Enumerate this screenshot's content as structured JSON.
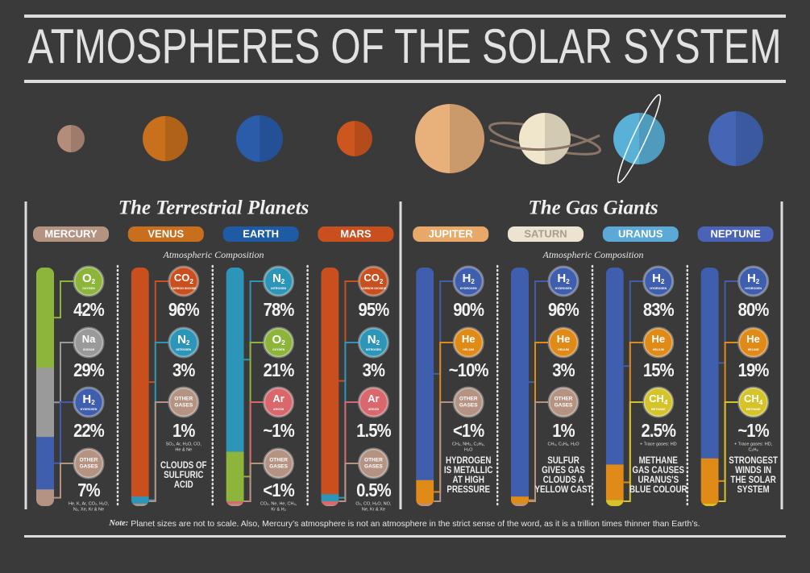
{
  "title": "ATMOSPHERES OF THE SOLAR SYSTEM",
  "groups": [
    {
      "title": "The Terrestrial Planets",
      "subtitle": "Atmospheric Composition",
      "planets": [
        {
          "name": "MERCURY",
          "color": "#b59383",
          "disc_color": "#b58c7a",
          "gases": [
            {
              "symbol": "O",
              "sub": "2",
              "name": "OXYGEN",
              "color": "#8db53c",
              "value": 42,
              "label": "42%"
            },
            {
              "symbol": "Na",
              "name": "SODIUM",
              "color": "#9a9a9a",
              "value": 29,
              "label": "29%"
            },
            {
              "symbol": "H",
              "sub": "2",
              "name": "HYDROGEN",
              "color": "#3f5fae",
              "value": 22,
              "label": "22%"
            },
            {
              "symbol": [
                "OTHER",
                "GASES"
              ],
              "color": "#b59383",
              "value": 7,
              "label": "7%",
              "note": [
                "He, K, Ar, CO₂, H₂O,",
                "N₂, Xe, Kr & Ne"
              ]
            }
          ]
        },
        {
          "name": "VENUS",
          "color": "#c96e1c",
          "disc_color": "#c9701c",
          "gases": [
            {
              "symbol": "CO",
              "sub": "2",
              "name": "CARBON DIOXIDE",
              "color": "#c9501e",
              "value": 96,
              "label": "96%"
            },
            {
              "symbol": "N",
              "sub": "2",
              "name": "NITROGEN",
              "color": "#2d96b8",
              "value": 3,
              "label": "3%"
            },
            {
              "symbol": [
                "OTHER",
                "GASES"
              ],
              "color": "#b59383",
              "value": 1,
              "label": "1%",
              "note": [
                "SO₂, Ar, H₂O, CO,",
                "He & Ne"
              ]
            }
          ],
          "caption": [
            "CLOUDS OF",
            "SULFURIC",
            "ACID"
          ]
        },
        {
          "name": "EARTH",
          "color": "#1f5aa5",
          "disc_color": "#2a5caa",
          "gases": [
            {
              "symbol": "N",
              "sub": "2",
              "name": "NITROGEN",
              "color": "#2d96b8",
              "value": 78,
              "label": "78%"
            },
            {
              "symbol": "O",
              "sub": "2",
              "name": "OXYGEN",
              "color": "#8db53c",
              "value": 21,
              "label": "21%"
            },
            {
              "symbol": "Ar",
              "name": "ARGON",
              "color": "#d9676c",
              "value": 1,
              "label": "~1%"
            },
            {
              "symbol": [
                "OTHER",
                "GASES"
              ],
              "color": "#b59383",
              "value": 1,
              "label": "<1%",
              "note": [
                "CO₂, Ne, He, CH₄,",
                "Kr & H₂"
              ]
            }
          ]
        },
        {
          "name": "MARS",
          "color": "#c9501e",
          "disc_color": "#cc561e",
          "gases": [
            {
              "symbol": "CO",
              "sub": "2",
              "name": "CARBON DIOXIDE",
              "color": "#c9501e",
              "value": 95,
              "label": "95%"
            },
            {
              "symbol": "N",
              "sub": "2",
              "name": "NITROGEN",
              "color": "#2d96b8",
              "value": 3,
              "label": "3%"
            },
            {
              "symbol": "Ar",
              "name": "ARGON",
              "color": "#d9676c",
              "value": 1.5,
              "label": "1.5%"
            },
            {
              "symbol": [
                "OTHER",
                "GASES"
              ],
              "color": "#b59383",
              "value": 0.5,
              "label": "0.5%",
              "note": [
                "O₂, CO, H₂O, NO,",
                "Ne, Kr & Xe"
              ]
            }
          ]
        }
      ]
    },
    {
      "title": "The Gas Giants",
      "subtitle": "Atmospheric Composition",
      "planets": [
        {
          "name": "JUPITER",
          "color": "#e8a868",
          "disc_color": "#e8b07a",
          "gases": [
            {
              "symbol": "H",
              "sub": "2",
              "name": "HYDROGEN",
              "color": "#3f5fae",
              "value": 90,
              "label": "90%"
            },
            {
              "symbol": "He",
              "name": "HELIUM",
              "color": "#e08a18",
              "value": 10,
              "label": "~10%"
            },
            {
              "symbol": [
                "OTHER",
                "GASES"
              ],
              "color": "#b59383",
              "value": 1,
              "label": "<1%",
              "note": [
                "CH₄, NH₃, C₂H₆,",
                "H₂O"
              ]
            }
          ],
          "caption": [
            "HYDROGEN",
            "IS METALLIC",
            "AT HIGH",
            "PRESSURE"
          ]
        },
        {
          "name": "SATURN",
          "color": "#ece4d0",
          "disc_color": "#f0e6cc",
          "gases": [
            {
              "symbol": "H",
              "sub": "2",
              "name": "HYDROGEN",
              "color": "#3f5fae",
              "value": 96,
              "label": "96%"
            },
            {
              "symbol": "He",
              "name": "HELIUM",
              "color": "#e08a18",
              "value": 3,
              "label": "3%"
            },
            {
              "symbol": [
                "OTHER",
                "GASES"
              ],
              "color": "#b59383",
              "value": 1,
              "label": "1%",
              "note": [
                "CH₄, C₂H₆, H₂O"
              ]
            }
          ],
          "caption": [
            "SULFUR",
            "GIVES GAS",
            "CLOUDS A",
            "YELLOW CAST"
          ]
        },
        {
          "name": "URANUS",
          "color": "#5aa9d6",
          "disc_color": "#5ab1d8",
          "gases": [
            {
              "symbol": "H",
              "sub": "2",
              "name": "HYDROGEN",
              "color": "#3f5fae",
              "value": 83,
              "label": "83%"
            },
            {
              "symbol": "He",
              "name": "HELIUM",
              "color": "#e08a18",
              "value": 15,
              "label": "15%"
            },
            {
              "symbol": "CH",
              "sub": "4",
              "name": "METHANE",
              "color": "#d4c42a",
              "value": 2.5,
              "label": "2.5%",
              "note": [
                "+ Trace gases: HD"
              ]
            }
          ],
          "caption": [
            "METHANE",
            "GAS CAUSES",
            "URANUS'S",
            "BLUE COLOUR"
          ]
        },
        {
          "name": "NEPTUNE",
          "color": "#4a63b6",
          "disc_color": "#4466b4",
          "gases": [
            {
              "symbol": "H",
              "sub": "2",
              "name": "HYDROGEN",
              "color": "#3f5fae",
              "value": 80,
              "label": "80%"
            },
            {
              "symbol": "He",
              "name": "HELIUM",
              "color": "#e08a18",
              "value": 19,
              "label": "19%"
            },
            {
              "symbol": "CH",
              "sub": "4",
              "name": "METHANE",
              "color": "#d4c42a",
              "value": 1,
              "label": "~1%",
              "note": [
                "+ Trace gases: HD,",
                "C₂H₆"
              ]
            }
          ],
          "caption": [
            "STRONGEST",
            "WINDS IN",
            "THE SOLAR",
            "SYSTEM"
          ]
        }
      ]
    }
  ],
  "note": {
    "label": "Note:",
    "text": " Planet sizes are not to scale. Also, Mercury’s atmosphere is not an atmosphere in the strict sense of the word, as it is a trillion times thinner than Earth’s."
  }
}
